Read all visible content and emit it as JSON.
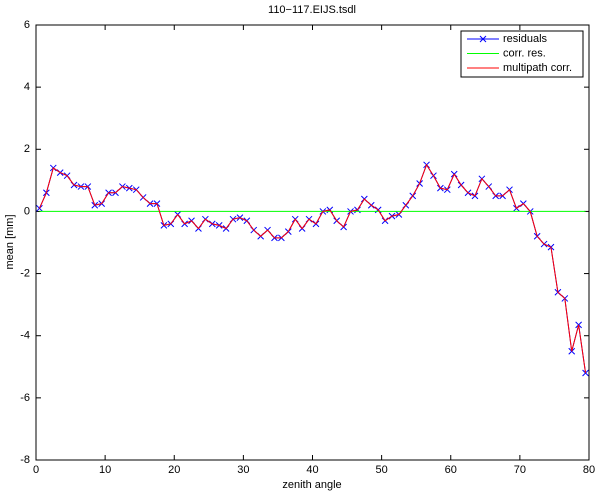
{
  "chart_data": {
    "type": "line",
    "title": "110−117.EIJS.tsdl",
    "x_label": "zenith angle",
    "y_label": "mean  [mm]",
    "x": [
      0.5,
      1.5,
      2.5,
      3.5,
      4.5,
      5.5,
      6.5,
      7.5,
      8.5,
      9.5,
      10.5,
      11.5,
      12.5,
      13.5,
      14.5,
      15.5,
      16.5,
      17.5,
      18.5,
      19.5,
      20.5,
      21.5,
      22.5,
      23.5,
      24.5,
      25.5,
      26.5,
      27.5,
      28.5,
      29.5,
      30.5,
      31.5,
      32.5,
      33.5,
      34.5,
      35.5,
      36.5,
      37.5,
      38.5,
      39.5,
      40.5,
      41.5,
      42.5,
      43.5,
      44.5,
      45.5,
      46.5,
      47.5,
      48.5,
      49.5,
      50.5,
      51.5,
      52.5,
      53.5,
      54.5,
      55.5,
      56.5,
      57.5,
      58.5,
      59.5,
      60.5,
      61.5,
      62.5,
      63.5,
      64.5,
      65.5,
      66.5,
      67.5,
      68.5,
      69.5,
      70.5,
      71.5,
      72.5,
      73.5,
      74.5,
      75.5,
      76.5,
      77.5,
      78.5,
      79.5
    ],
    "series": [
      {
        "name": "residuals",
        "color": "#0000ff",
        "marker": "x",
        "values": [
          0.1,
          0.6,
          1.4,
          1.25,
          1.15,
          0.85,
          0.8,
          0.8,
          0.2,
          0.25,
          0.6,
          0.6,
          0.8,
          0.75,
          0.7,
          0.45,
          0.25,
          0.25,
          -0.45,
          -0.4,
          -0.1,
          -0.4,
          -0.3,
          -0.55,
          -0.25,
          -0.4,
          -0.45,
          -0.55,
          -0.25,
          -0.2,
          -0.3,
          -0.6,
          -0.8,
          -0.6,
          -0.85,
          -0.85,
          -0.65,
          -0.25,
          -0.55,
          -0.25,
          -0.4,
          0,
          0.05,
          -0.3,
          -0.5,
          0,
          0.05,
          0.4,
          0.2,
          0.05,
          -0.3,
          -0.15,
          -0.1,
          0.2,
          0.5,
          0.9,
          1.5,
          1.15,
          0.75,
          0.7,
          1.2,
          0.85,
          0.6,
          0.5,
          1.05,
          0.8,
          0.5,
          0.5,
          0.7,
          0.1,
          0.25,
          0,
          -0.8,
          -1.05,
          -1.15,
          -2.6,
          -2.8,
          -4.5,
          -3.65,
          -5.2
        ]
      },
      {
        "name": "corr. res.",
        "color": "#00ff00",
        "values": [
          0,
          0,
          0,
          0,
          0,
          0,
          0,
          0,
          0,
          0,
          0,
          0,
          0,
          0,
          0,
          0,
          0,
          0,
          0,
          0,
          0,
          0,
          0,
          0,
          0,
          0,
          0,
          0,
          0,
          0,
          0,
          0,
          0,
          0,
          0,
          0,
          0,
          0,
          0,
          0,
          0,
          0,
          0,
          0,
          0,
          0,
          0,
          0,
          0,
          0,
          0,
          0,
          0,
          0,
          0,
          0,
          0,
          0,
          0,
          0,
          0,
          0,
          0,
          0,
          0,
          0,
          0,
          0,
          0,
          0,
          0,
          0,
          0,
          0,
          0,
          0,
          0,
          0,
          0,
          0
        ]
      },
      {
        "name": "multipath corr.",
        "color": "#ff0000",
        "values": [
          0.1,
          0.6,
          1.4,
          1.25,
          1.15,
          0.85,
          0.8,
          0.8,
          0.2,
          0.25,
          0.6,
          0.6,
          0.8,
          0.75,
          0.7,
          0.45,
          0.25,
          0.25,
          -0.45,
          -0.4,
          -0.1,
          -0.4,
          -0.3,
          -0.55,
          -0.25,
          -0.4,
          -0.45,
          -0.55,
          -0.25,
          -0.2,
          -0.3,
          -0.6,
          -0.8,
          -0.6,
          -0.85,
          -0.85,
          -0.65,
          -0.25,
          -0.55,
          -0.25,
          -0.4,
          0,
          0.05,
          -0.3,
          -0.5,
          0,
          0.05,
          0.4,
          0.2,
          0.05,
          -0.3,
          -0.15,
          -0.1,
          0.2,
          0.5,
          0.9,
          1.5,
          1.15,
          0.75,
          0.7,
          1.2,
          0.85,
          0.6,
          0.5,
          1.05,
          0.8,
          0.5,
          0.5,
          0.7,
          0.1,
          0.25,
          0,
          -0.8,
          -1.05,
          -1.15,
          -2.6,
          -2.8,
          -4.5,
          -3.65,
          -5.2
        ]
      }
    ],
    "xlim": [
      0,
      80
    ],
    "xticks": [
      0,
      10,
      20,
      30,
      40,
      50,
      60,
      70,
      80
    ],
    "ylim": [
      -8,
      6
    ],
    "yticks": [
      -8,
      -6,
      -4,
      -2,
      0,
      2,
      4,
      6
    ],
    "grid": false,
    "legend": "upper right"
  }
}
